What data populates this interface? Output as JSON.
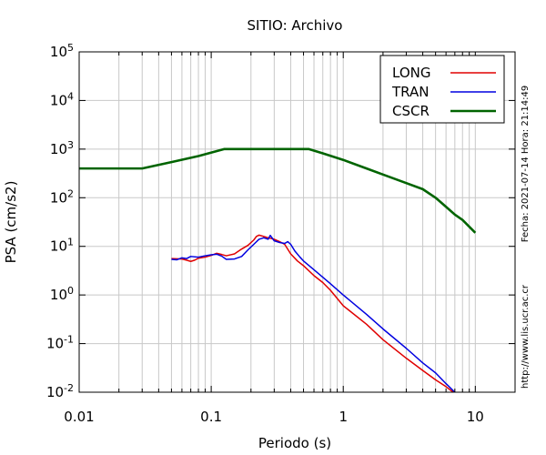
{
  "chart_data": {
    "type": "line",
    "title": "SITIO: Archivo",
    "xlabel": "Periodo (s)",
    "ylabel": "PSA (cm/s2)",
    "x_scale": "log",
    "y_scale": "log",
    "xlim": [
      0.01,
      20
    ],
    "ylim": [
      0.01,
      100000
    ],
    "grid": true,
    "legend_position": "top-right",
    "x_ticks": [
      {
        "value": 0.01,
        "label": "0.01"
      },
      {
        "value": 0.1,
        "label": "0.1"
      },
      {
        "value": 1,
        "label": "1"
      },
      {
        "value": 10,
        "label": "10"
      }
    ],
    "y_ticks": [
      {
        "value": 0.01,
        "base": "10",
        "exp": "-2"
      },
      {
        "value": 0.1,
        "base": "10",
        "exp": "-1"
      },
      {
        "value": 1,
        "base": "10",
        "exp": "0"
      },
      {
        "value": 10,
        "base": "10",
        "exp": "1"
      },
      {
        "value": 100,
        "base": "10",
        "exp": "2"
      },
      {
        "value": 1000,
        "base": "10",
        "exp": "3"
      },
      {
        "value": 10000,
        "base": "10",
        "exp": "4"
      },
      {
        "value": 100000,
        "base": "10",
        "exp": "5"
      }
    ],
    "series": [
      {
        "name": "LONG",
        "color": "#e00000",
        "points": [
          [
            0.05,
            5.6
          ],
          [
            0.06,
            5.5
          ],
          [
            0.065,
            5.2
          ],
          [
            0.07,
            4.9
          ],
          [
            0.075,
            5.2
          ],
          [
            0.08,
            5.7
          ],
          [
            0.09,
            6.0
          ],
          [
            0.1,
            6.5
          ],
          [
            0.11,
            7.2
          ],
          [
            0.12,
            6.8
          ],
          [
            0.13,
            6.4
          ],
          [
            0.15,
            7.0
          ],
          [
            0.17,
            8.8
          ],
          [
            0.19,
            10.5
          ],
          [
            0.21,
            13.5
          ],
          [
            0.22,
            16.0
          ],
          [
            0.23,
            17.0
          ],
          [
            0.25,
            16.0
          ],
          [
            0.27,
            15.0
          ],
          [
            0.3,
            14.0
          ],
          [
            0.33,
            12.5
          ],
          [
            0.36,
            11.0
          ],
          [
            0.4,
            7.0
          ],
          [
            0.45,
            5.0
          ],
          [
            0.5,
            4.0
          ],
          [
            0.6,
            2.5
          ],
          [
            0.7,
            1.8
          ],
          [
            0.8,
            1.25
          ],
          [
            1.0,
            0.6
          ],
          [
            1.5,
            0.25
          ],
          [
            2.0,
            0.12
          ],
          [
            3.0,
            0.05
          ],
          [
            4.0,
            0.028
          ],
          [
            5.0,
            0.018
          ],
          [
            6.0,
            0.013
          ],
          [
            6.8,
            0.01
          ]
        ]
      },
      {
        "name": "TRAN",
        "color": "#0000e0",
        "points": [
          [
            0.05,
            5.4
          ],
          [
            0.055,
            5.3
          ],
          [
            0.06,
            5.8
          ],
          [
            0.065,
            5.6
          ],
          [
            0.07,
            6.2
          ],
          [
            0.08,
            6.0
          ],
          [
            0.09,
            6.4
          ],
          [
            0.1,
            6.7
          ],
          [
            0.11,
            6.9
          ],
          [
            0.12,
            6.3
          ],
          [
            0.13,
            5.4
          ],
          [
            0.15,
            5.5
          ],
          [
            0.17,
            6.2
          ],
          [
            0.19,
            8.5
          ],
          [
            0.21,
            11.0
          ],
          [
            0.23,
            14.0
          ],
          [
            0.25,
            15.0
          ],
          [
            0.27,
            14.0
          ],
          [
            0.28,
            16.8
          ],
          [
            0.3,
            13.0
          ],
          [
            0.33,
            12.0
          ],
          [
            0.36,
            11.5
          ],
          [
            0.38,
            12.5
          ],
          [
            0.4,
            11.0
          ],
          [
            0.43,
            8.0
          ],
          [
            0.47,
            6.0
          ],
          [
            0.5,
            5.0
          ],
          [
            0.6,
            3.3
          ],
          [
            0.8,
            1.7
          ],
          [
            1.0,
            1.0
          ],
          [
            1.5,
            0.4
          ],
          [
            2.0,
            0.2
          ],
          [
            3.0,
            0.08
          ],
          [
            4.0,
            0.04
          ],
          [
            5.0,
            0.025
          ],
          [
            6.0,
            0.015
          ],
          [
            7.0,
            0.01
          ]
        ]
      },
      {
        "name": "CSCR",
        "color": "#006400",
        "points": [
          [
            0.01,
            400
          ],
          [
            0.03,
            400
          ],
          [
            0.05,
            540
          ],
          [
            0.08,
            720
          ],
          [
            0.125,
            1000
          ],
          [
            0.55,
            1000
          ],
          [
            0.7,
            820
          ],
          [
            1.0,
            600
          ],
          [
            1.5,
            400
          ],
          [
            2.0,
            300
          ],
          [
            3.0,
            200
          ],
          [
            4.0,
            150
          ],
          [
            5.0,
            100
          ],
          [
            6.0,
            65
          ],
          [
            7.0,
            45
          ],
          [
            8.0,
            35
          ],
          [
            10.0,
            19
          ]
        ]
      }
    ],
    "side_annotations": {
      "timestamp": "Fecha: 2021-07-14  Hora: 21:14:49",
      "url": "http://www.lis.ucr.ac.cr"
    }
  }
}
